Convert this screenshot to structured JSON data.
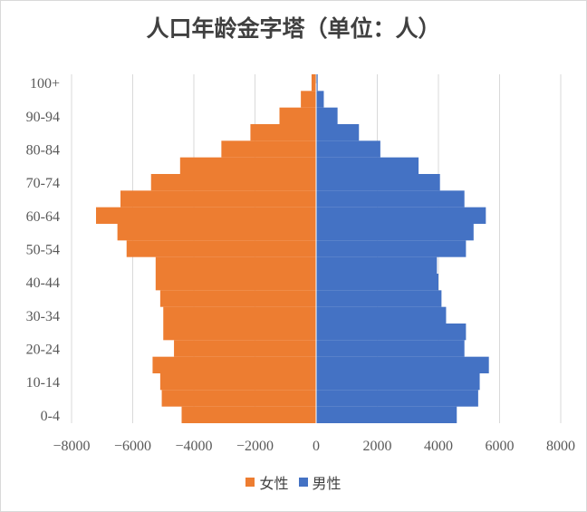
{
  "chart_data": {
    "type": "bar",
    "orientation": "horizontal",
    "title": "人口年龄金字塔（单位：人）",
    "categories": [
      "0-4",
      "5-9",
      "10-14",
      "15-19",
      "20-24",
      "25-29",
      "30-34",
      "35-39",
      "40-44",
      "45-49",
      "50-54",
      "55-59",
      "60-64",
      "65-69",
      "70-74",
      "75-79",
      "80-84",
      "85-89",
      "90-94",
      "95-99",
      "100+"
    ],
    "y_tick_labels": [
      "0-4",
      "",
      "10-14",
      "",
      "20-24",
      "",
      "30-34",
      "",
      "40-44",
      "",
      "50-54",
      "",
      "60-64",
      "",
      "70-74",
      "",
      "80-84",
      "",
      "90-94",
      "",
      "100+"
    ],
    "series": [
      {
        "name": "女性",
        "color": "#ED7D31",
        "values": [
          -4400,
          -5050,
          -5100,
          -5350,
          -4650,
          -5000,
          -5000,
          -5100,
          -5250,
          -5250,
          -6200,
          -6500,
          -7200,
          -6400,
          -5400,
          -4450,
          -3100,
          -2150,
          -1200,
          -500,
          -150
        ]
      },
      {
        "name": "男性",
        "color": "#4472C4",
        "values": [
          4600,
          5300,
          5350,
          5650,
          4850,
          4900,
          4250,
          4100,
          4000,
          3950,
          4900,
          5150,
          5550,
          4850,
          4050,
          3350,
          2100,
          1400,
          700,
          250,
          50
        ]
      }
    ],
    "xlim": [
      -8000,
      8000
    ],
    "x_ticks": [
      -8000,
      -6000,
      -4000,
      -2000,
      0,
      2000,
      4000,
      6000,
      8000
    ],
    "x_tick_labels": [
      "−8000",
      "−6000",
      "−4000",
      "−2000",
      "0",
      "2000",
      "4000",
      "6000",
      "8000"
    ],
    "grid": "vertical",
    "legend_position": "bottom"
  }
}
